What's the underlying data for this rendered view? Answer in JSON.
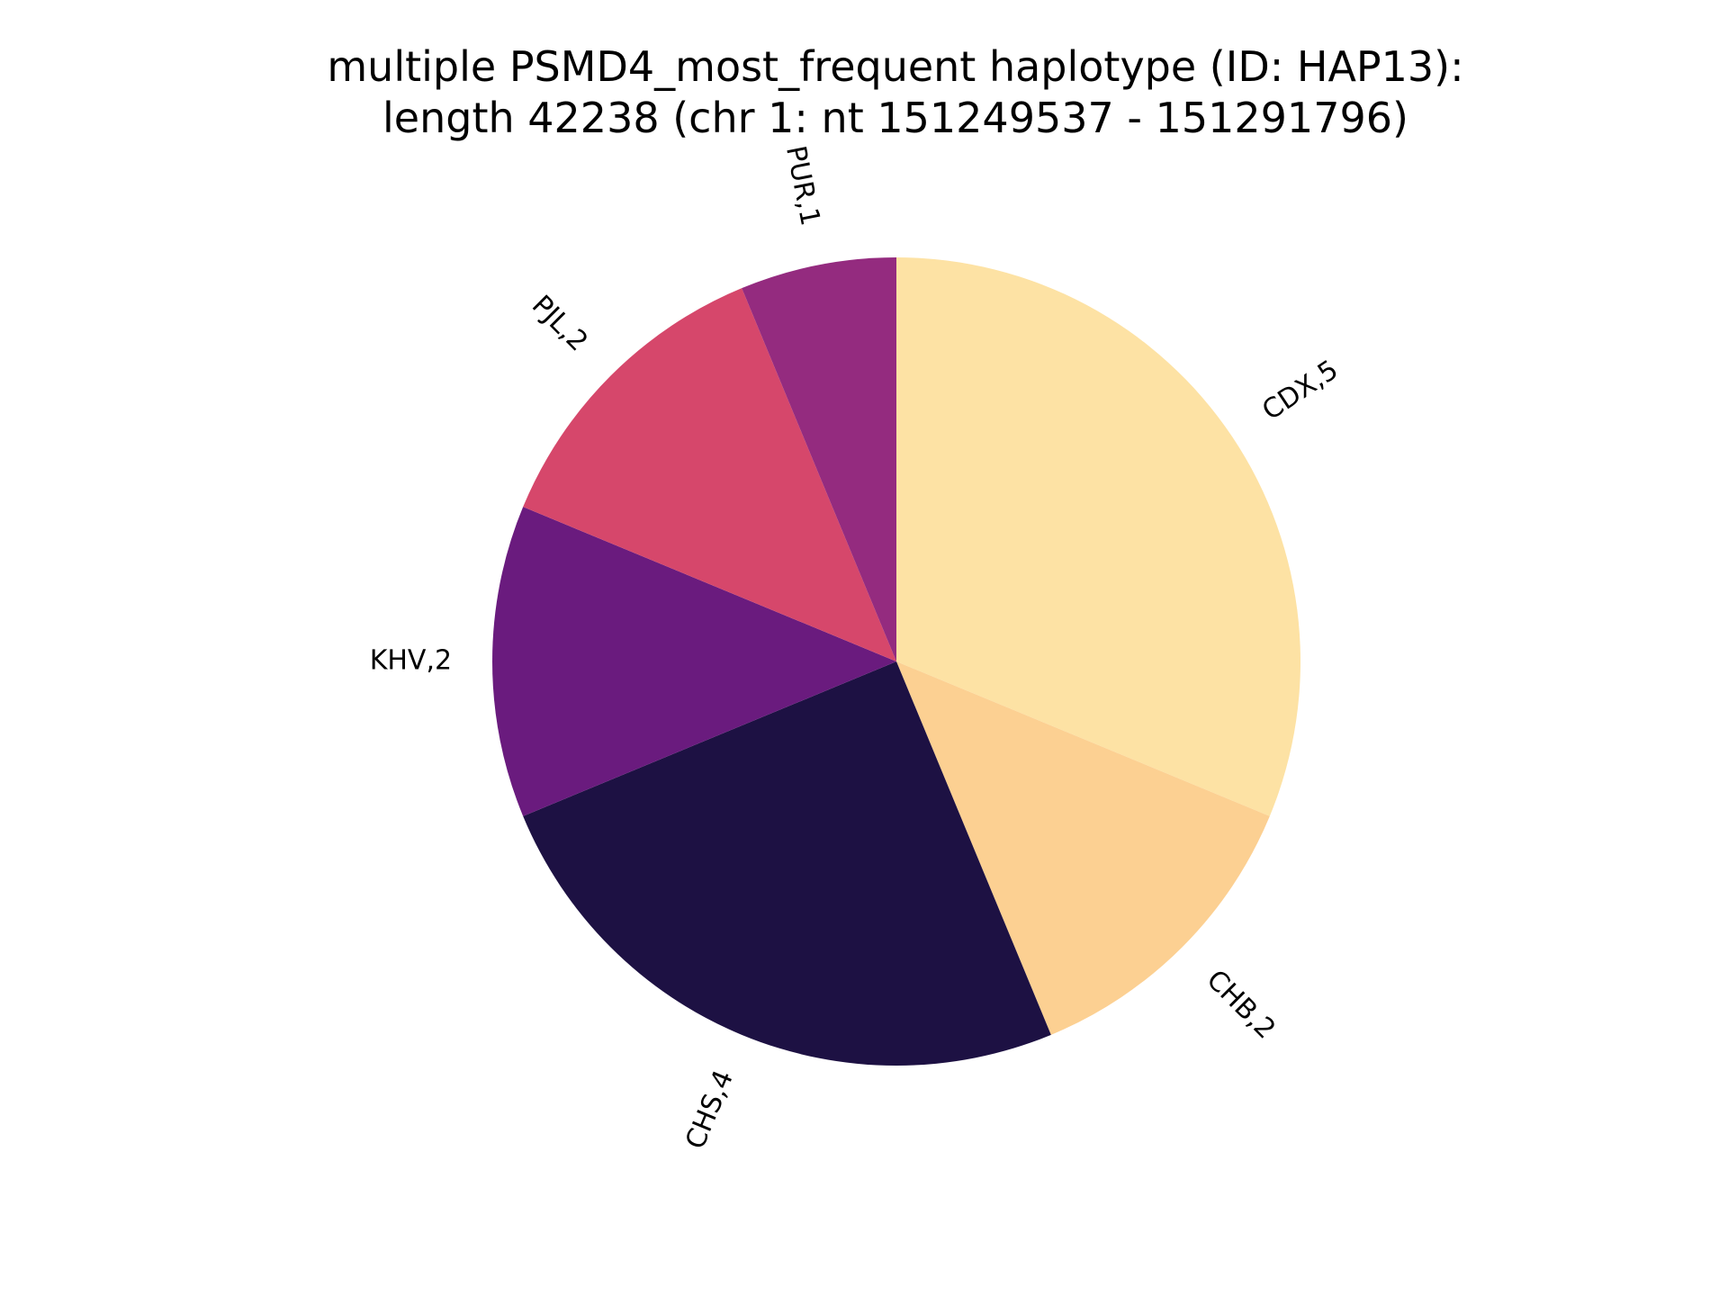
{
  "chart_data": {
    "type": "pie",
    "title": "multiple PSMD4_most_frequent haplotype (ID: HAP13):",
    "subtitle": "length 42238 (chr 1: nt 151249537 - 151291796)",
    "start_angle_deg": 90,
    "direction": "clockwise",
    "slices": [
      {
        "label": "CDX,5",
        "value": 5,
        "color": "#fde2a4"
      },
      {
        "label": "CHB,2",
        "value": 2,
        "color": "#fcd092"
      },
      {
        "label": "CHS,4",
        "value": 4,
        "color": "#1d1143"
      },
      {
        "label": "KHV,2",
        "value": 2,
        "color": "#6a1b7e"
      },
      {
        "label": "PJL,2",
        "value": 2,
        "color": "#d6476b"
      },
      {
        "label": "PUR,1",
        "value": 1,
        "color": "#942b7f"
      }
    ],
    "legend": "none"
  }
}
